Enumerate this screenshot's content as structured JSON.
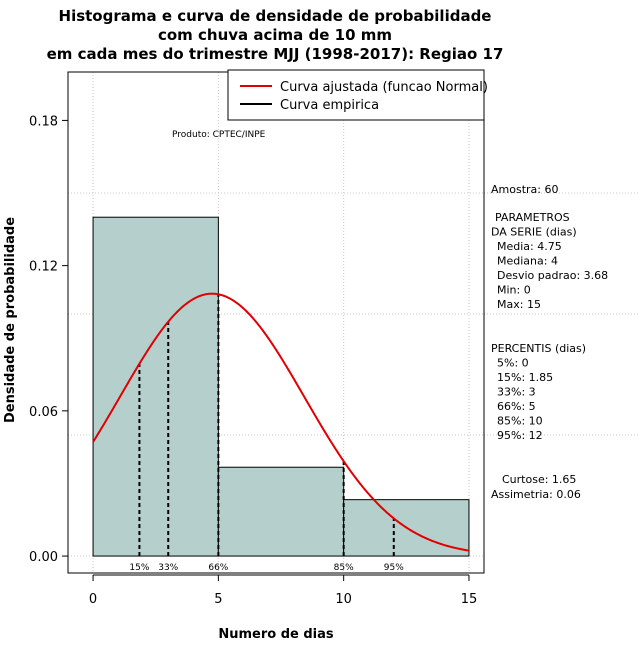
{
  "chart_data": {
    "type": "bar",
    "title": [
      "Histograma e curva de densidade de probabilidade",
      "com chuva acima de 10 mm",
      "em cada mes do trimestre MJJ (1998-2017): Regiao 17"
    ],
    "xlabel": "Numero de dias",
    "ylabel": "Densidade de probabilidade",
    "xlim": [
      -1,
      15.6
    ],
    "ylim": [
      -0.007,
      0.2
    ],
    "x_ticks": [
      0,
      5,
      10,
      15
    ],
    "x_tick_labels": [
      "0",
      "5",
      "10",
      "15"
    ],
    "y_ticks": [
      0.0,
      0.06,
      0.12,
      0.18
    ],
    "y_tick_labels": [
      "0.00",
      "0.06",
      "0.12",
      "0.18"
    ],
    "grid": true,
    "histogram": {
      "bins": [
        {
          "x0": 0,
          "x1": 5,
          "density": 0.14
        },
        {
          "x0": 5,
          "x1": 10,
          "density": 0.0367
        },
        {
          "x0": 10,
          "x1": 15,
          "density": 0.0233
        }
      ],
      "fill": "#b5cfcd"
    },
    "series": [
      {
        "name": "Curva ajustada (funcao Normal)",
        "type": "normal-curve",
        "mean": 4.75,
        "sd": 3.68,
        "color": "#e00000"
      },
      {
        "name": "Curva empirica",
        "type": "line",
        "color": "#000000"
      }
    ],
    "percentile_markers": [
      {
        "label": "15%",
        "x": 1.85
      },
      {
        "label": "33%",
        "x": 3
      },
      {
        "label": "66%",
        "x": 5
      },
      {
        "label": "85%",
        "x": 10
      },
      {
        "label": "95%",
        "x": 12
      }
    ],
    "legend_position": "top-right"
  },
  "annotations": {
    "produto": "Produto: CPTEC/INPE",
    "amostra": "Amostra: 60",
    "parametros": [
      "PARAMETROS",
      "DA SERIE (dias)",
      "Media: 4.75",
      "Mediana: 4",
      "Desvio padrao: 3.68",
      "Min: 0",
      "Max: 15"
    ],
    "percentis": [
      "PERCENTIS (dias)",
      "5%: 0",
      "15%: 1.85",
      "33%: 3",
      "66%: 5",
      "85%: 10",
      "95%: 12"
    ],
    "curtose": "Curtose: 1.65",
    "assimetria": "Assimetria: 0.06"
  }
}
